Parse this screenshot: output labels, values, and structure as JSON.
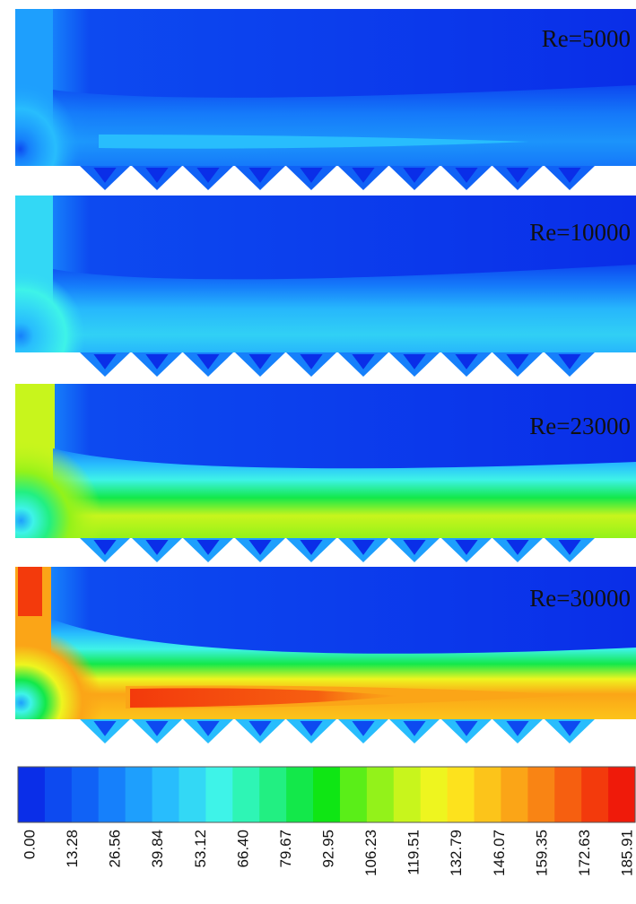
{
  "panels": [
    {
      "label": "Re=5000"
    },
    {
      "label": "Re=10000"
    },
    {
      "label": "Re=23000"
    },
    {
      "label": "Re=30000"
    }
  ],
  "colorbar": {
    "ticks": [
      "0.00",
      "13.28",
      "26.56",
      "39.84",
      "53.12",
      "66.40",
      "79.67",
      "92.95",
      "106.23",
      "119.51",
      "132.79",
      "146.07",
      "159.35",
      "172.63",
      "185.91"
    ],
    "colors": [
      "#0a2ee8",
      "#0d4af0",
      "#1062f6",
      "#1680fb",
      "#1e9ffd",
      "#28bdfd",
      "#33d8f5",
      "#3ef3e8",
      "#2ef5b5",
      "#22ef82",
      "#13e84a",
      "#0fe614",
      "#5aee18",
      "#93f21a",
      "#c8f51c",
      "#eef51f",
      "#fde21d",
      "#fcc41a",
      "#fba517",
      "#f98414",
      "#f65f10",
      "#f33a0c",
      "#ef1a0a"
    ]
  }
}
